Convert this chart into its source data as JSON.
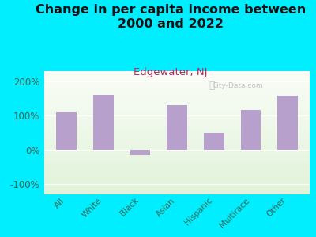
{
  "title": "Change in per capita income between\n2000 and 2022",
  "subtitle": "Edgewater, NJ",
  "categories": [
    "All",
    "White",
    "Black",
    "Asian",
    "Hispanic",
    "Multirace",
    "Other"
  ],
  "values": [
    110,
    160,
    -15,
    130,
    50,
    118,
    158
  ],
  "bar_color": "#b8a0cc",
  "title_fontsize": 11.5,
  "subtitle_fontsize": 9.5,
  "subtitle_color": "#b03060",
  "title_color": "#111111",
  "bg_outer": "#00eeff",
  "ylim": [
    -130,
    230
  ],
  "yticks": [
    -100,
    0,
    100,
    200
  ],
  "ytick_labels": [
    "-100%",
    "0%",
    "100%",
    "200%"
  ],
  "watermark": "City-Data.com",
  "tick_color": "#336655",
  "grid_color": "#ffffff"
}
